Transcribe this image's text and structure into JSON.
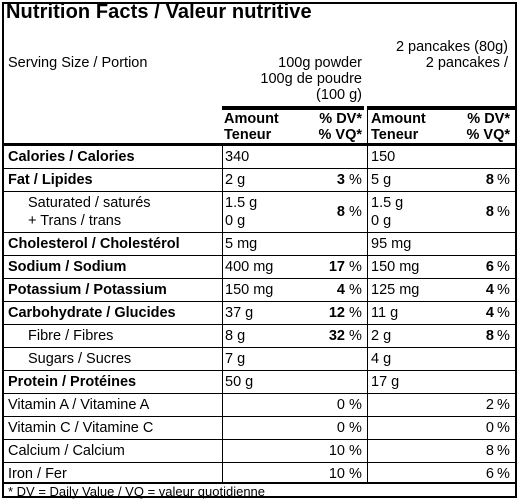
{
  "title": "Nutrition Facts / Valeur nutritive",
  "serving": {
    "label": "Serving Size  / Portion",
    "col1": [
      "100g powder",
      "100g de poudre",
      "(100 g)"
    ],
    "col2": [
      "2 pancakes (80g)",
      "2 pancakes  /"
    ]
  },
  "headers": {
    "amount": "Amount",
    "teneur": "Teneur",
    "dv": "% DV*",
    "vq": "% VQ*"
  },
  "rows": [
    {
      "label": "Calories / Calories",
      "a1": "340",
      "d1": "",
      "a2": "150",
      "d2": ""
    },
    {
      "label": "Fat / Lipides",
      "a1": "2 g",
      "d1": "3",
      "a2": "5 g",
      "d2": "8"
    },
    {
      "label": "Saturated / saturés",
      "label2": "+ Trans / trans",
      "a1": "1.5 g",
      "a1b": "0 g",
      "d1": "8",
      "a2": "1.5 g",
      "a2b": "0 g",
      "d2": "8"
    },
    {
      "label": "Cholesterol / Cholestérol",
      "a1": "5 mg",
      "d1": "",
      "a2": "95 mg",
      "d2": ""
    },
    {
      "label": "Sodium / Sodium",
      "a1": "400 mg",
      "d1": "17",
      "a2": "150 mg",
      "d2": "6"
    },
    {
      "label": "Potassium / Potassium",
      "a1": "150 mg",
      "d1": "4",
      "a2": "125 mg",
      "d2": "4"
    },
    {
      "label": "Carbohydrate / Glucides",
      "a1": "37 g",
      "d1": "12",
      "a2": "11 g",
      "d2": "4"
    },
    {
      "label": "Fibre / Fibres",
      "a1": "8 g",
      "d1": "32",
      "a2": "2 g",
      "d2": "8"
    },
    {
      "label": "Sugars / Sucres",
      "a1": "7 g",
      "d1": "",
      "a2": "4 g",
      "d2": ""
    },
    {
      "label": "Protein / Protéines",
      "a1": "50 g",
      "d1": "",
      "a2": "17 g",
      "d2": ""
    },
    {
      "label": "Vitamin A / Vitamine A",
      "a1": "",
      "d1": "0",
      "a2": "",
      "d2": "2"
    },
    {
      "label": "Vitamin C / Vitamine C",
      "a1": "",
      "d1": "0",
      "a2": "",
      "d2": "0"
    },
    {
      "label": "Calcium / Calcium",
      "a1": "",
      "d1": "10",
      "a2": "",
      "d2": "8"
    },
    {
      "label": "Iron / Fer",
      "a1": "",
      "d1": "10",
      "a2": "",
      "d2": "6"
    }
  ],
  "pct": "%",
  "footnote": "* DV = Daily Value / VQ = valeur quotidienne"
}
